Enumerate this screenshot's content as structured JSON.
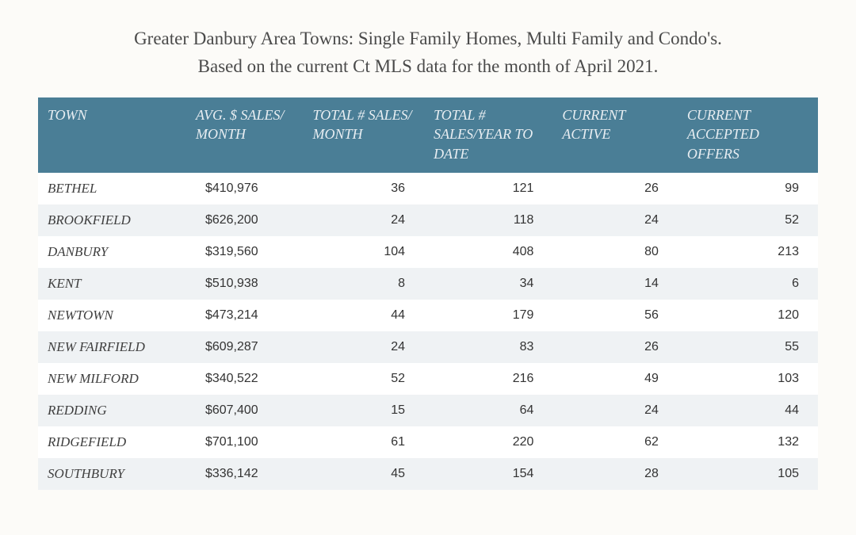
{
  "colors": {
    "page_bg": "#fcfbf8",
    "header_bg": "#4a7e96",
    "header_text": "#e8eef2",
    "row_odd_bg": "#ffffff",
    "row_even_bg": "#eff2f4",
    "title_color": "#4a4a4a",
    "cell_text": "#333333"
  },
  "title": {
    "line1": "Greater Danbury Area Towns: Single Family Homes, Multi Family and Condo's.",
    "line2": "Based on the current Ct MLS data for the month of April 2021."
  },
  "columns": [
    "TOWN",
    "AVG. $ SALES/ MONTH",
    "TOTAL # SALES/ MONTH",
    "TOTAL # SALES/YEAR TO DATE",
    "CURRENT ACTIVE",
    "CURRENT ACCEPTED OFFERS"
  ],
  "rows": [
    {
      "town": "BETHEL",
      "avg": "$410,976",
      "month": "36",
      "ytd": "121",
      "active": "26",
      "offers": "99"
    },
    {
      "town": "BROOKFIELD",
      "avg": "$626,200",
      "month": "24",
      "ytd": "118",
      "active": "24",
      "offers": "52"
    },
    {
      "town": "DANBURY",
      "avg": "$319,560",
      "month": "104",
      "ytd": "408",
      "active": "80",
      "offers": "213"
    },
    {
      "town": "KENT",
      "avg": "$510,938",
      "month": "8",
      "ytd": "34",
      "active": "14",
      "offers": "6"
    },
    {
      "town": "NEWTOWN",
      "avg": "$473,214",
      "month": "44",
      "ytd": "179",
      "active": "56",
      "offers": "120"
    },
    {
      "town": "NEW FAIRFIELD",
      "avg": "$609,287",
      "month": "24",
      "ytd": "83",
      "active": "26",
      "offers": "55"
    },
    {
      "town": "NEW MILFORD",
      "avg": "$340,522",
      "month": "52",
      "ytd": "216",
      "active": "49",
      "offers": "103"
    },
    {
      "town": "REDDING",
      "avg": "$607,400",
      "month": "15",
      "ytd": "64",
      "active": "24",
      "offers": "44"
    },
    {
      "town": "RIDGEFIELD",
      "avg": "$701,100",
      "month": "61",
      "ytd": "220",
      "active": "62",
      "offers": "132"
    },
    {
      "town": "SOUTHBURY",
      "avg": "$336,142",
      "month": "45",
      "ytd": "154",
      "active": "28",
      "offers": "105"
    }
  ]
}
